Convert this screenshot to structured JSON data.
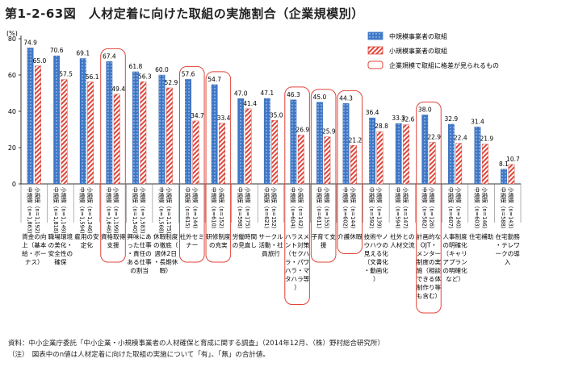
{
  "chart_data": {
    "type": "bar",
    "title": "第1-2-63図　人材定着に向けた取組の実施割合（企業規模別）",
    "ylabel": "(%)",
    "ylim": [
      0,
      80
    ],
    "yticks": [
      0,
      20,
      40,
      60,
      80
    ],
    "grid": false,
    "legend_position": "top-right",
    "series": [
      {
        "name": "中規模事業者の取組",
        "color": "#3f78c8",
        "pattern": "dots"
      },
      {
        "name": "小規模事業者の取組",
        "color": "#e0453a",
        "pattern": "hatch"
      }
    ],
    "highlight_legend": "企業規模で取組に格差が見られるもの",
    "categories": [
      {
        "label": "賃金の向上（基本給・ボーナス）",
        "mid": 74.9,
        "small": 65.0,
        "mid_n": "中規模（n=1,863）",
        "small_n": "小規模（n=1,192）",
        "highlight": false
      },
      {
        "label": "職場環境の美化・安全性の確保",
        "mid": 70.6,
        "small": 57.5,
        "mid_n": "中規模（n=1,818）",
        "small_n": "小規模（n=1,149）",
        "highlight": false
      },
      {
        "label": "雇用の安定化",
        "mid": 69.1,
        "small": 56.1,
        "mid_n": "中規模（n=1,594）",
        "small_n": "小規模（n=1,346）",
        "highlight": false
      },
      {
        "label": "資格取得支援",
        "mid": 67.4,
        "small": 49.4,
        "mid_n": "中規模（n=1,646）",
        "small_n": "小規模（n=1,199）",
        "highlight": true
      },
      {
        "label": "興味にあった仕事・責任のある仕事の割当",
        "mid": 61.8,
        "small": 56.3,
        "mid_n": "中規模（n=1,540）",
        "small_n": "小規模（n=1,583）",
        "highlight": false
      },
      {
        "label": "休暇制度の徹底（週休2日・長期休暇）",
        "mid": 60.0,
        "small": 52.9,
        "mid_n": "中規模（n=1,568）",
        "small_n": "小規模（n=1,175）",
        "highlight": false
      },
      {
        "label": "社外セミナー",
        "mid": 57.6,
        "small": 34.7,
        "mid_n": "中規模（n=615）",
        "small_n": "小規模（n=144）",
        "highlight": true
      },
      {
        "label": "研修制度の充実",
        "mid": 54.7,
        "small": 33.4,
        "mid_n": "中規模（n=610）",
        "small_n": "小規模（n=152）",
        "highlight": true
      },
      {
        "label": "労働時間の見直し",
        "mid": 47.0,
        "small": 41.4,
        "mid_n": "中規模（n=598）",
        "small_n": "小規模（n=175）",
        "highlight": false
      },
      {
        "label": "サークル活動・社員旅行",
        "mid": 47.1,
        "small": 35.0,
        "mid_n": "中規模（n=621）",
        "small_n": "小規模（n=152）",
        "highlight": false
      },
      {
        "label": "ハラスメント対策（セクハラ・パワハラ・マタハラ等）",
        "mid": 46.3,
        "small": 26.9,
        "mid_n": "中規模（n=604）",
        "small_n": "小規模（n=142）",
        "highlight": true
      },
      {
        "label": "子育て支援",
        "mid": 45.0,
        "small": 25.9,
        "mid_n": "中規模（n=611）",
        "small_n": "小規模（n=155）",
        "highlight": true
      },
      {
        "label": "介護休暇",
        "mid": 44.3,
        "small": 21.2,
        "mid_n": "中規模（n=602）",
        "small_n": "小規模（n=144）",
        "highlight": true
      },
      {
        "label": "技術やノウハウの見える化（文書化・動画化）",
        "mid": 36.4,
        "small": 28.8,
        "mid_n": "中規模（n=592）",
        "small_n": "小規模（n=139）",
        "highlight": false
      },
      {
        "label": "社外との人材交流",
        "mid": 33.3,
        "small": 32.6,
        "mid_n": "中規模（n=594）",
        "small_n": "小規模（n=147）",
        "highlight": false
      },
      {
        "label": "計画的なOJT・メンター制度の実施（相談できる体制作り等も含む）",
        "mid": 38.0,
        "small": 22.9,
        "mid_n": "中規模（n=582）",
        "small_n": "小規模（n=126）",
        "highlight": true
      },
      {
        "label": "人事制度の明確化（キャリアプランの明確化など）",
        "mid": 32.9,
        "small": 22.4,
        "mid_n": "中規模（n=607）",
        "small_n": "小規模（n=140）",
        "highlight": false
      },
      {
        "label": "住宅補助",
        "mid": 31.4,
        "small": 21.9,
        "mid_n": "中規模（n=603）",
        "small_n": "小規模（n=146）",
        "highlight": false
      },
      {
        "label": "在宅勤務・テレワークの導入",
        "mid": 8.1,
        "small": 10.7,
        "mid_n": "中規模（n=588）",
        "small_n": "小規模（n=143）",
        "highlight": false
      }
    ]
  },
  "footnotes": {
    "source": "資料：中小企業庁委託「中小企業・小規模事業者の人材確保と育成に関する調査」（2014年12月、（株）野村総合研究所）",
    "note": "（注）　図表中のn値は人材定着に向けた取組の実施について「有」、「無」の合計値。"
  }
}
